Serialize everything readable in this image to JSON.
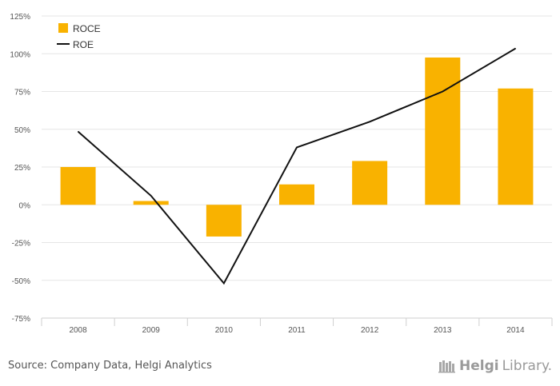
{
  "chart_data": {
    "type": "bar",
    "categories": [
      "2008",
      "2009",
      "2010",
      "2011",
      "2012",
      "2013",
      "2014"
    ],
    "series": [
      {
        "name": "ROCE",
        "kind": "bar",
        "color": "#F9B200",
        "values": [
          25,
          2.5,
          -21,
          13.5,
          29,
          97.5,
          77
        ]
      },
      {
        "name": "ROE",
        "kind": "line",
        "color": "#111111",
        "values": [
          48.5,
          6,
          -52,
          38,
          55,
          75,
          103.5
        ]
      }
    ],
    "ylim": [
      -75,
      125
    ],
    "yticks": [
      125,
      100,
      75,
      50,
      25,
      0,
      -25,
      -50,
      -75
    ],
    "ytick_labels": [
      "125%",
      "100%",
      "75%",
      "50%",
      "25%",
      "0%",
      "-25%",
      "-50%",
      "-75%"
    ],
    "legend_position": "top-left",
    "grid": true,
    "title": "",
    "xlabel": "",
    "ylabel": ""
  },
  "footer": {
    "source": "Source: Company Data, Helgi Analytics",
    "brand_part1": "Helgi",
    "brand_part2": "Library."
  }
}
